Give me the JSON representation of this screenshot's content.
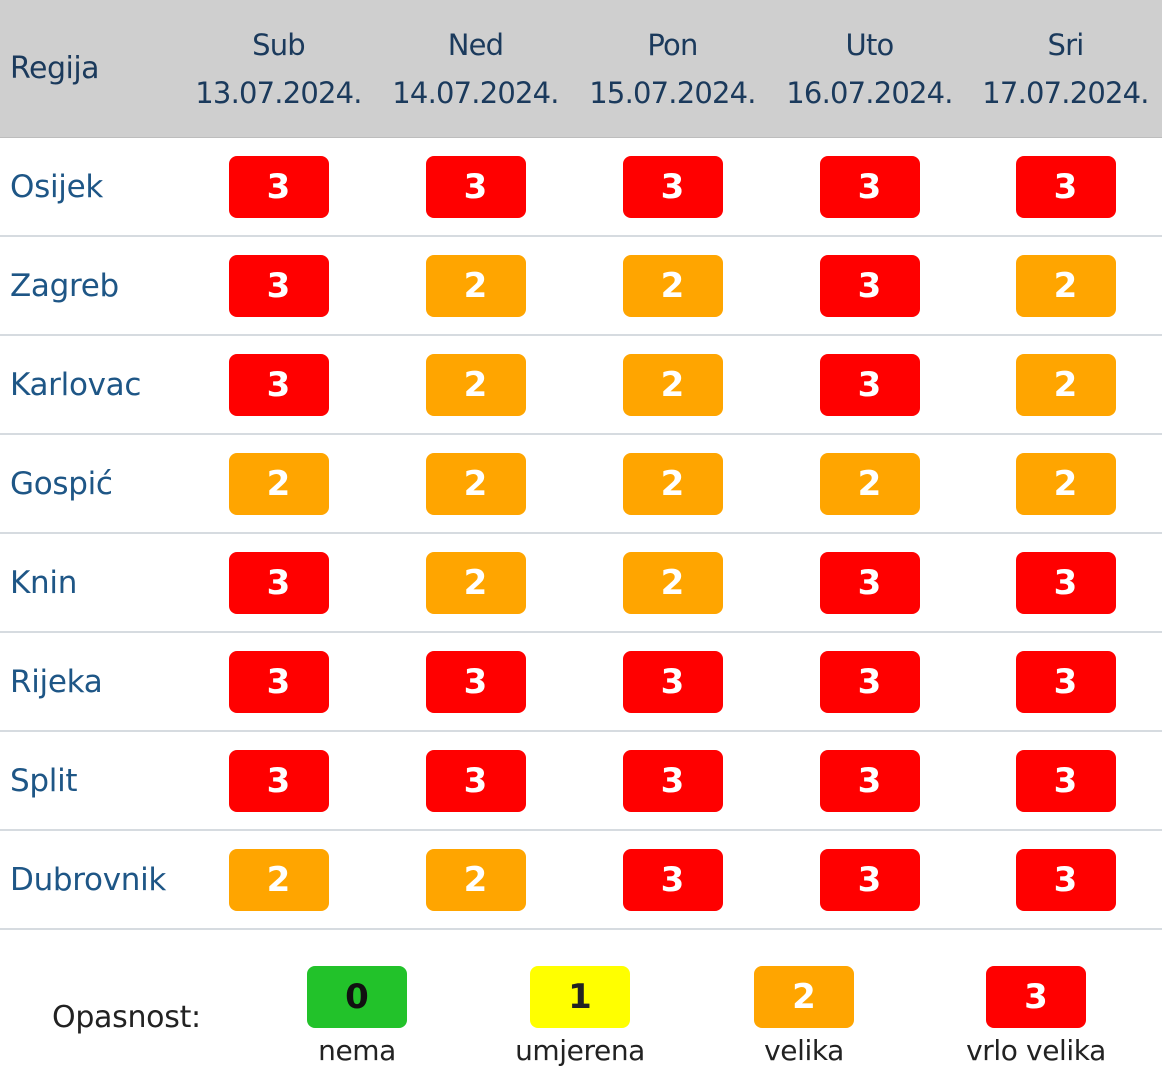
{
  "header": {
    "region_label": "Regija",
    "days": [
      {
        "day": "Sub",
        "date": "13.07.2024."
      },
      {
        "day": "Ned",
        "date": "14.07.2024."
      },
      {
        "day": "Pon",
        "date": "15.07.2024."
      },
      {
        "day": "Uto",
        "date": "16.07.2024."
      },
      {
        "day": "Sri",
        "date": "17.07.2024."
      }
    ]
  },
  "rows": [
    {
      "region": "Osijek",
      "levels": [
        "3",
        "3",
        "3",
        "3",
        "3"
      ]
    },
    {
      "region": "Zagreb",
      "levels": [
        "3",
        "2",
        "2",
        "3",
        "2"
      ]
    },
    {
      "region": "Karlovac",
      "levels": [
        "3",
        "2",
        "2",
        "3",
        "2"
      ]
    },
    {
      "region": "Gospić",
      "levels": [
        "2",
        "2",
        "2",
        "2",
        "2"
      ]
    },
    {
      "region": "Knin",
      "levels": [
        "3",
        "2",
        "2",
        "3",
        "3"
      ]
    },
    {
      "region": "Rijeka",
      "levels": [
        "3",
        "3",
        "3",
        "3",
        "3"
      ]
    },
    {
      "region": "Split",
      "levels": [
        "3",
        "3",
        "3",
        "3",
        "3"
      ]
    },
    {
      "region": "Dubrovnik",
      "levels": [
        "2",
        "2",
        "3",
        "3",
        "3"
      ]
    }
  ],
  "legend": {
    "title": "Opasnost:",
    "items": [
      {
        "value": "0",
        "label": "nema"
      },
      {
        "value": "1",
        "label": "umjerena"
      },
      {
        "value": "2",
        "label": "velika"
      },
      {
        "value": "3",
        "label": "vrlo velika"
      }
    ]
  },
  "colors": {
    "level_0": "#22c22a",
    "level_1": "#ffff00",
    "level_2": "#ffa500",
    "level_3": "#ff0000",
    "header_bg": "#cfcfcf"
  }
}
